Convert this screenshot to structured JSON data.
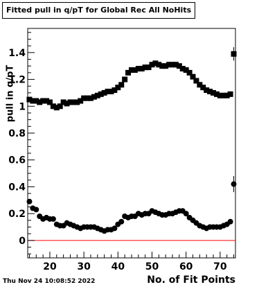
{
  "title": "Fitted pull in q/pT for Global Rec All NoHits",
  "timestamp": "Thu Nov 24 10:08:52 2022",
  "colors": {
    "axis": "#000000",
    "zero_line": "#ff0000",
    "markers": "#000000"
  },
  "chart_data": {
    "type": "scatter",
    "title": "Fitted pull in q/pT for Global Rec All NoHits",
    "xlabel": "No. of Fit Points",
    "ylabel": "pull in q/pT",
    "xlim": [
      13.5,
      74.5
    ],
    "ylim": [
      -0.13,
      1.58
    ],
    "x_ticks": [
      "20",
      "30",
      "40",
      "50",
      "60",
      "70"
    ],
    "y_ticks": [
      "0",
      "0.2",
      "0.4",
      "0.6",
      "0.8",
      "1",
      "1.2",
      "1.4"
    ],
    "x_tick_values": [
      20,
      30,
      40,
      50,
      60,
      70
    ],
    "y_tick_values": [
      0,
      0.2,
      0.4,
      0.6,
      0.8,
      1.0,
      1.2,
      1.4
    ],
    "reference_line_y": 0,
    "grid": false,
    "legend": "none",
    "series": [
      {
        "marker": "square",
        "x": [
          14,
          15,
          16,
          17,
          18,
          19,
          20,
          21,
          22,
          23,
          24,
          25,
          26,
          27,
          28,
          29,
          30,
          31,
          32,
          33,
          34,
          35,
          36,
          37,
          38,
          39,
          40,
          41,
          42,
          43,
          44,
          45,
          46,
          47,
          48,
          49,
          50,
          51,
          52,
          53,
          54,
          55,
          56,
          57,
          58,
          59,
          60,
          61,
          62,
          63,
          64,
          65,
          66,
          67,
          68,
          69,
          70,
          71,
          72,
          73,
          74
        ],
        "y": [
          1.05,
          1.04,
          1.04,
          1.03,
          1.04,
          1.04,
          1.03,
          1.0,
          0.99,
          1.0,
          1.03,
          1.02,
          1.03,
          1.03,
          1.03,
          1.04,
          1.06,
          1.06,
          1.06,
          1.07,
          1.08,
          1.09,
          1.1,
          1.11,
          1.11,
          1.12,
          1.14,
          1.16,
          1.2,
          1.25,
          1.27,
          1.27,
          1.28,
          1.28,
          1.29,
          1.29,
          1.31,
          1.32,
          1.31,
          1.3,
          1.3,
          1.31,
          1.31,
          1.31,
          1.3,
          1.28,
          1.27,
          1.25,
          1.22,
          1.19,
          1.16,
          1.14,
          1.12,
          1.11,
          1.1,
          1.09,
          1.08,
          1.08,
          1.08,
          1.09,
          1.39
        ],
        "yerr": [
          0,
          0,
          0,
          0,
          0,
          0,
          0,
          0,
          0,
          0,
          0,
          0,
          0,
          0,
          0,
          0,
          0,
          0,
          0,
          0,
          0,
          0,
          0,
          0,
          0,
          0,
          0,
          0,
          0,
          0,
          0,
          0,
          0,
          0,
          0,
          0,
          0,
          0,
          0,
          0,
          0,
          0,
          0,
          0,
          0,
          0,
          0,
          0,
          0,
          0,
          0,
          0,
          0,
          0,
          0,
          0,
          0,
          0,
          0,
          0,
          0.05
        ]
      },
      {
        "marker": "circle",
        "x": [
          14,
          15,
          16,
          17,
          18,
          19,
          20,
          21,
          22,
          23,
          24,
          25,
          26,
          27,
          28,
          29,
          30,
          31,
          32,
          33,
          34,
          35,
          36,
          37,
          38,
          39,
          40,
          41,
          42,
          43,
          44,
          45,
          46,
          47,
          48,
          49,
          50,
          51,
          52,
          53,
          54,
          55,
          56,
          57,
          58,
          59,
          60,
          61,
          62,
          63,
          64,
          65,
          66,
          67,
          68,
          69,
          70,
          71,
          72,
          73,
          74
        ],
        "y": [
          0.29,
          0.24,
          0.23,
          0.18,
          0.16,
          0.17,
          0.16,
          0.16,
          0.12,
          0.11,
          0.11,
          0.13,
          0.12,
          0.11,
          0.1,
          0.09,
          0.1,
          0.1,
          0.1,
          0.1,
          0.09,
          0.08,
          0.07,
          0.08,
          0.08,
          0.09,
          0.12,
          0.14,
          0.18,
          0.17,
          0.18,
          0.18,
          0.2,
          0.19,
          0.2,
          0.2,
          0.22,
          0.21,
          0.2,
          0.19,
          0.19,
          0.2,
          0.2,
          0.21,
          0.22,
          0.22,
          0.2,
          0.17,
          0.15,
          0.13,
          0.11,
          0.1,
          0.09,
          0.1,
          0.1,
          0.1,
          0.1,
          0.11,
          0.12,
          0.14,
          0.42
        ],
        "yerr": [
          0,
          0,
          0,
          0,
          0,
          0,
          0,
          0,
          0,
          0,
          0,
          0,
          0,
          0,
          0,
          0,
          0,
          0,
          0,
          0,
          0,
          0,
          0,
          0,
          0,
          0,
          0,
          0,
          0,
          0,
          0,
          0,
          0,
          0,
          0,
          0,
          0,
          0,
          0,
          0,
          0,
          0,
          0,
          0,
          0,
          0,
          0,
          0,
          0,
          0,
          0,
          0,
          0,
          0,
          0,
          0,
          0,
          0,
          0,
          0,
          0.06
        ]
      }
    ]
  }
}
